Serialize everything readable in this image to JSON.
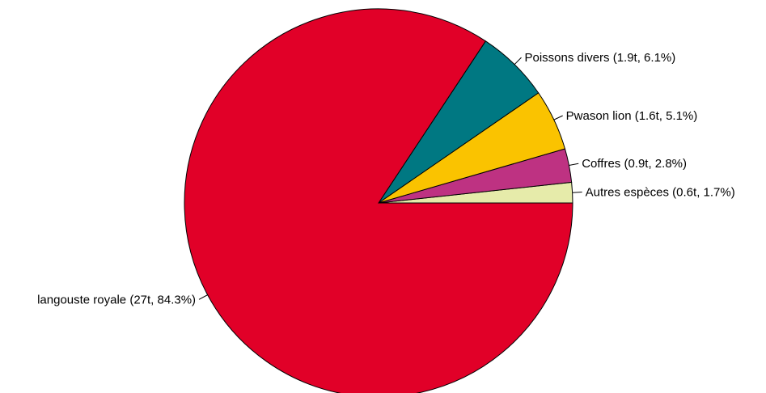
{
  "chart_data": {
    "type": "pie",
    "title": "",
    "start_direction": "right (3 o'clock), counter-clockwise",
    "slices": [
      {
        "name": "Autres espèces",
        "tonnes": 0.6,
        "percent": 1.7,
        "label": "Autres espèces (0.6t, 1.7%)",
        "color": "#E6EBAA"
      },
      {
        "name": "Coffres",
        "tonnes": 0.9,
        "percent": 2.8,
        "label": "Coffres (0.9t, 2.8%)",
        "color": "#BE3282"
      },
      {
        "name": "Pwason lion",
        "tonnes": 1.6,
        "percent": 5.1,
        "label": "Pwason lion (1.6t, 5.1%)",
        "color": "#FAC300"
      },
      {
        "name": "Poissons divers",
        "tonnes": 1.9,
        "percent": 6.1,
        "label": "Poissons divers (1.9t, 6.1%)",
        "color": "#007882"
      },
      {
        "name": "langouste royale",
        "tonnes": 27,
        "percent": 84.3,
        "label": "langouste royale (27t, 84.3%)",
        "color": "#E10028"
      }
    ]
  }
}
